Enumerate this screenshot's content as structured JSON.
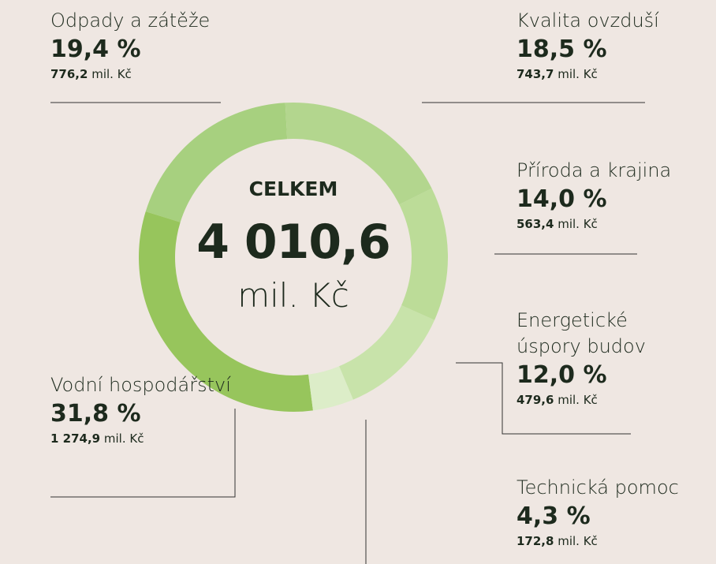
{
  "chart_data": {
    "type": "donut",
    "center_title": "CELKEM",
    "total": {
      "value": 4010.6,
      "label": "4 010,6"
    },
    "unit": "mil. Kč",
    "categories": [
      "Kvalita ovzduší",
      "Příroda a krajina",
      "Energetické úspory budov",
      "Technická pomoc",
      "Vodní hospodářství",
      "Odpady a zátěže"
    ],
    "values": [
      18.5,
      14.0,
      12.0,
      4.3,
      31.8,
      19.4
    ],
    "value_labels": [
      "18,5 %",
      "14,0 %",
      "12,0 %",
      "4,3 %",
      "31,8 %",
      "19,4 %"
    ],
    "amounts": [
      {
        "value": 743.7,
        "label": "743,7"
      },
      {
        "value": 563.4,
        "label": "563,4"
      },
      {
        "value": 479.6,
        "label": "479,6"
      },
      {
        "value": 172.8,
        "label": "172,8"
      },
      {
        "value": 1274.9,
        "label": "1 274,9"
      },
      {
        "value": 776.2,
        "label": "776,2"
      }
    ],
    "colors": [
      "#b3d68e",
      "#bcdc98",
      "#c8e3aa",
      "#dcedc8",
      "#97c55c",
      "#a7d07f"
    ]
  }
}
